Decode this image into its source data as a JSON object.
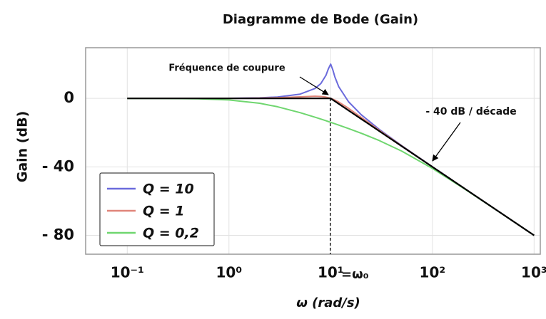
{
  "chart_data": {
    "type": "line",
    "title": "Diagramme de Bode (Gain)",
    "x_label": "ω (rad/s)",
    "y_label": "Gain (dB)",
    "x_scale": "log",
    "x": [
      0.1,
      0.2,
      0.5,
      1,
      2,
      3,
      5,
      7,
      8,
      9,
      9.5,
      10,
      10.5,
      11,
      12,
      15,
      20,
      30,
      50,
      100,
      200,
      500,
      1000
    ],
    "series": [
      {
        "name": "Q = 10",
        "color": "#6b6bdc",
        "values": [
          0,
          0,
          0.02,
          0.09,
          0.35,
          0.81,
          2.48,
          5.77,
          8.66,
          13.55,
          17.32,
          20,
          16.67,
          12.5,
          6.82,
          -2.0,
          -9.56,
          -18.07,
          -27.61,
          -39.91,
          -52.02,
          -67.96,
          -80.0
        ]
      },
      {
        "name": "Q = 1",
        "color": "#e0857a",
        "values": [
          0,
          0,
          0.01,
          0.04,
          0.17,
          0.37,
          0.9,
          1.25,
          1.14,
          0.73,
          0.4,
          0,
          -0.47,
          -0.98,
          -2.13,
          -5.81,
          -11.14,
          -18.63,
          -27.79,
          -39.96,
          -52.03,
          -67.96,
          -80.0
        ]
      },
      {
        "name": "Q = 0,2",
        "color": "#6fd66f",
        "values": [
          -0.01,
          -0.04,
          -0.24,
          -0.9,
          -2.84,
          -4.88,
          -8.33,
          -10.97,
          -12.08,
          -13.07,
          -13.54,
          -13.98,
          -14.4,
          -14.81,
          -15.59,
          -17.62,
          -20.37,
          -24.61,
          -30.8,
          -40.9,
          -52.28,
          -68.0,
          -80.01
        ]
      },
      {
        "color": "#000000",
        "x": [
          0.1,
          10,
          1000
        ],
        "values": [
          0,
          0,
          -80
        ]
      }
    ],
    "xlim": [
      0.039,
      1150
    ],
    "ylim": [
      -91,
      29.6
    ],
    "xticks": [
      {
        "value": 0.1,
        "label": "10⁻¹"
      },
      {
        "value": 1,
        "label": "10⁰"
      },
      {
        "value": 10,
        "label": "10¹"
      },
      {
        "value": 100,
        "label": "10²"
      },
      {
        "value": 1000,
        "label": "10³"
      }
    ],
    "yticks": [
      0,
      {
        "value": -40,
        "label": "- 40"
      },
      {
        "value": -80,
        "label": "- 80"
      }
    ],
    "grid": true,
    "legend": "lower left",
    "annotations": [
      {
        "text": "Fréquence de coupure"
      },
      {
        "text": "- 40 dB / décade"
      },
      {
        "text": "=ω₀"
      }
    ]
  }
}
